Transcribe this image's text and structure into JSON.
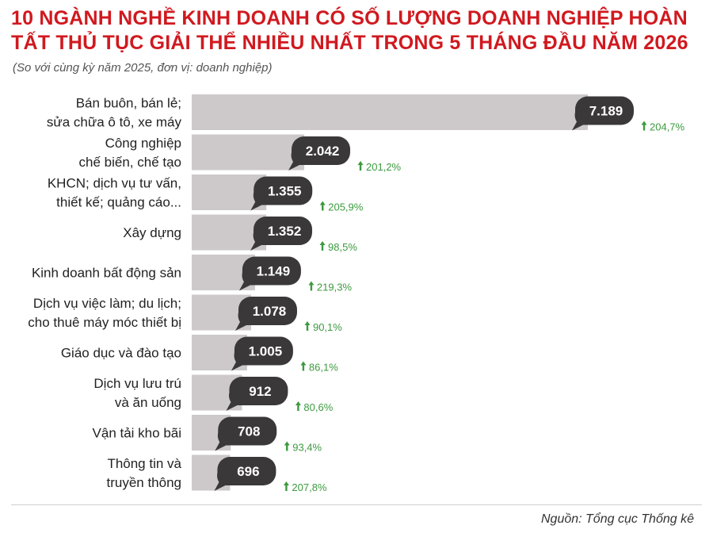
{
  "title": "10 NGÀNH NGHỀ KINH DOANH CÓ SỐ LƯỢNG DOANH NGHIỆP HOÀN TẤT THỦ TỤC GIẢI THỂ NHIỀU NHẤT TRONG 5 THÁNG ĐẦU NĂM 2026",
  "subtitle": "(So với cùng kỳ năm 2025, đơn vị: doanh nghiệp)",
  "source": "Nguồn: Tổng cục Thống kê",
  "colors": {
    "title": "#d0191f",
    "bar": "#cdc9ca",
    "bubble": "#3a3839",
    "up": "#3c9a3f"
  },
  "chart_data": {
    "type": "bar",
    "orientation": "horizontal",
    "categories": [
      [
        "Bán buôn, bán lẻ;",
        "sửa chữa ô tô, xe máy"
      ],
      [
        "Công nghiệp",
        "chế biến, chế tạo"
      ],
      [
        "KHCN; dịch vụ tư vấn,",
        "thiết kế; quảng cáo..."
      ],
      [
        "Xây dựng"
      ],
      [
        "Kinh doanh bất động sản"
      ],
      [
        "Dịch vụ việc làm; du lịch;",
        "cho thuê máy móc thiết bị"
      ],
      [
        "Giáo dục và đào tạo"
      ],
      [
        "Dịch vụ lưu trú",
        "và ăn uống"
      ],
      [
        "Vận tải kho bãi"
      ],
      [
        "Thông tin và",
        "truyền thông"
      ]
    ],
    "values": [
      7189,
      2042,
      1355,
      1352,
      1149,
      1078,
      1005,
      912,
      708,
      696
    ],
    "value_labels": [
      "7.189",
      "2.042",
      "1.355",
      "1.352",
      "1.149",
      "1.078",
      "1.005",
      "912",
      "708",
      "696"
    ],
    "change_labels": [
      "204,7%",
      "201,2%",
      "205,9%",
      "98,5%",
      "219,3%",
      "90,1%",
      "86,1%",
      "80,6%",
      "93,4%",
      "207,8%"
    ],
    "change_direction": "up"
  }
}
